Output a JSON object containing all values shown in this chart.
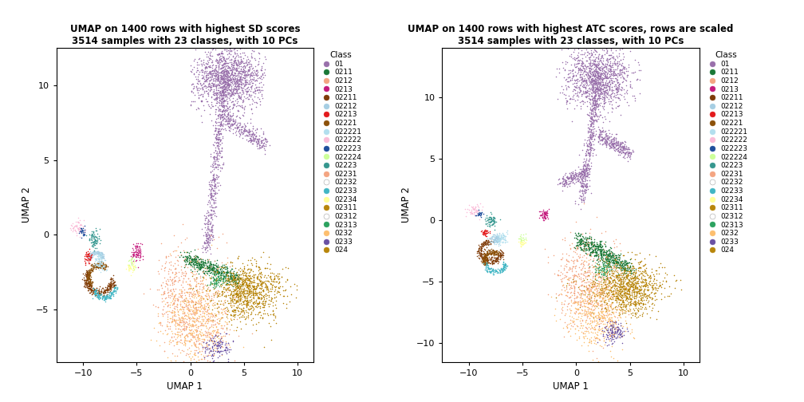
{
  "title_left": "UMAP on 1400 rows with highest SD scores\n3514 samples with 23 classes, with 10 PCs",
  "title_right": "UMAP on 1400 rows with highest ATC scores, rows are scaled\n3514 samples with 23 classes, with 10 PCs",
  "xlabel": "UMAP 1",
  "ylabel": "UMAP 2",
  "xlim_left": [
    -12.5,
    11.5
  ],
  "ylim_left": [
    -8.5,
    12.5
  ],
  "xlim_right": [
    -12.5,
    11.5
  ],
  "ylim_right": [
    -11.5,
    14.0
  ],
  "xticks": [
    -10,
    -5,
    0,
    5,
    10
  ],
  "yticks_left": [
    -5,
    0,
    5,
    10
  ],
  "yticks_right": [
    -10,
    -5,
    0,
    5,
    10
  ],
  "legend_title": "Class",
  "classes": [
    "01",
    "0211",
    "0212",
    "0213",
    "02211",
    "02212",
    "02213",
    "02221",
    "022221",
    "022222",
    "022223",
    "022224",
    "02223",
    "02231",
    "02232",
    "02233",
    "02234",
    "02311",
    "02312",
    "02313",
    "0232",
    "0233",
    "024"
  ],
  "colors": {
    "01": "#9970AB",
    "0211": "#1B7837",
    "0212": "#F4A582",
    "0213": "#C51B7D",
    "02211": "#7F3B08",
    "02212": "#A6CEE3",
    "02213": "#E31A1C",
    "02221": "#8C510A",
    "022221": "#B2DFEE",
    "022222": "#FABCD8",
    "022223": "#1F4E9C",
    "022224": "#CCFF99",
    "02223": "#35978F",
    "02231": "#F4A582",
    "02232": "#FFFFFF",
    "02233": "#41B6C4",
    "02234": "#FFFF99",
    "02311": "#B8860B",
    "02312": "#FFFFFF",
    "02313": "#2CA25F",
    "0232": "#FDBF6F",
    "0233": "#6A51A3",
    "024": "#B8860B"
  }
}
